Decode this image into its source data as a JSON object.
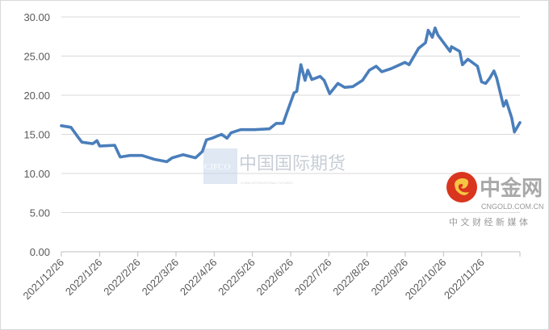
{
  "chart_data": {
    "type": "line",
    "title": "",
    "xlabel": "",
    "ylabel": "",
    "ylim": [
      0,
      30
    ],
    "yticks": [
      "0.00",
      "5.00",
      "10.00",
      "15.00",
      "20.00",
      "25.00",
      "30.00"
    ],
    "xticks": [
      "2021/12/26",
      "2022/1/26",
      "2022/2/26",
      "2022/3/26",
      "2022/4/26",
      "2022/5/26",
      "2022/6/26",
      "2022/7/26",
      "2022/8/26",
      "2022/9/26",
      "2022/10/26",
      "2022/11/26"
    ],
    "xlim": [
      "2021-12-26",
      "2022-11-26"
    ],
    "grid": "horizontal",
    "legend": "none",
    "line_color": "#4a7ebb",
    "series": [
      {
        "x": [
          "2021-12-26",
          "2022-01-02",
          "2022-01-07",
          "2022-01-10",
          "2022-01-18",
          "2022-01-21",
          "2022-01-23",
          "2022-02-03",
          "2022-02-07",
          "2022-02-14",
          "2022-02-23",
          "2022-03-04",
          "2022-03-13",
          "2022-03-17",
          "2022-03-25",
          "2022-04-03",
          "2022-04-08",
          "2022-04-11",
          "2022-04-15",
          "2022-04-22",
          "2022-04-26",
          "2022-04-29",
          "2022-05-06",
          "2022-05-16",
          "2022-05-27",
          "2022-06-01",
          "2022-06-06",
          "2022-06-09",
          "2022-06-14",
          "2022-06-16",
          "2022-06-19",
          "2022-06-22",
          "2022-06-24",
          "2022-06-27",
          "2022-07-03",
          "2022-07-06",
          "2022-07-10",
          "2022-07-16",
          "2022-07-21",
          "2022-07-27",
          "2022-08-03",
          "2022-08-08",
          "2022-08-13",
          "2022-08-17",
          "2022-08-24",
          "2022-09-03",
          "2022-09-06",
          "2022-09-13",
          "2022-09-18",
          "2022-09-20",
          "2022-09-23",
          "2022-09-25",
          "2022-09-27",
          "2022-10-06",
          "2022-10-07",
          "2022-10-13",
          "2022-10-15",
          "2022-10-19",
          "2022-10-26",
          "2022-10-29",
          "2022-11-01",
          "2022-11-04",
          "2022-11-07",
          "2022-11-09",
          "2022-11-14",
          "2022-11-16",
          "2022-11-20",
          "2022-11-22",
          "2022-11-26"
        ],
        "y": [
          16.1,
          15.9,
          14.7,
          14.0,
          13.8,
          14.2,
          13.5,
          13.6,
          12.1,
          12.3,
          12.3,
          11.8,
          11.5,
          12.0,
          12.4,
          12.0,
          12.8,
          14.3,
          14.5,
          15.0,
          14.5,
          15.2,
          15.6,
          15.6,
          15.7,
          16.4,
          16.4,
          17.9,
          20.3,
          20.5,
          23.9,
          21.9,
          23.2,
          22.0,
          22.4,
          21.9,
          20.2,
          21.5,
          21.0,
          21.1,
          21.9,
          23.2,
          23.7,
          23.0,
          23.4,
          24.2,
          23.9,
          26.0,
          26.7,
          28.3,
          27.4,
          28.6,
          27.7,
          25.6,
          26.2,
          25.6,
          23.9,
          24.6,
          23.7,
          21.7,
          21.5,
          22.2,
          23.1,
          22.2,
          18.6,
          19.3,
          17.1,
          15.3,
          16.5
        ]
      }
    ]
  },
  "watermarks": {
    "cifco_latin": "CIFCO",
    "cifco_chinese": "中国国际期货",
    "cifco_english": "CHINA INTERNATIONAL FUTURES",
    "cngold_chinese": "中金网",
    "cngold_domain": "CNGOLD.COM.CN",
    "cngold_tagline": "中 文 财 经 新 媒 体"
  }
}
